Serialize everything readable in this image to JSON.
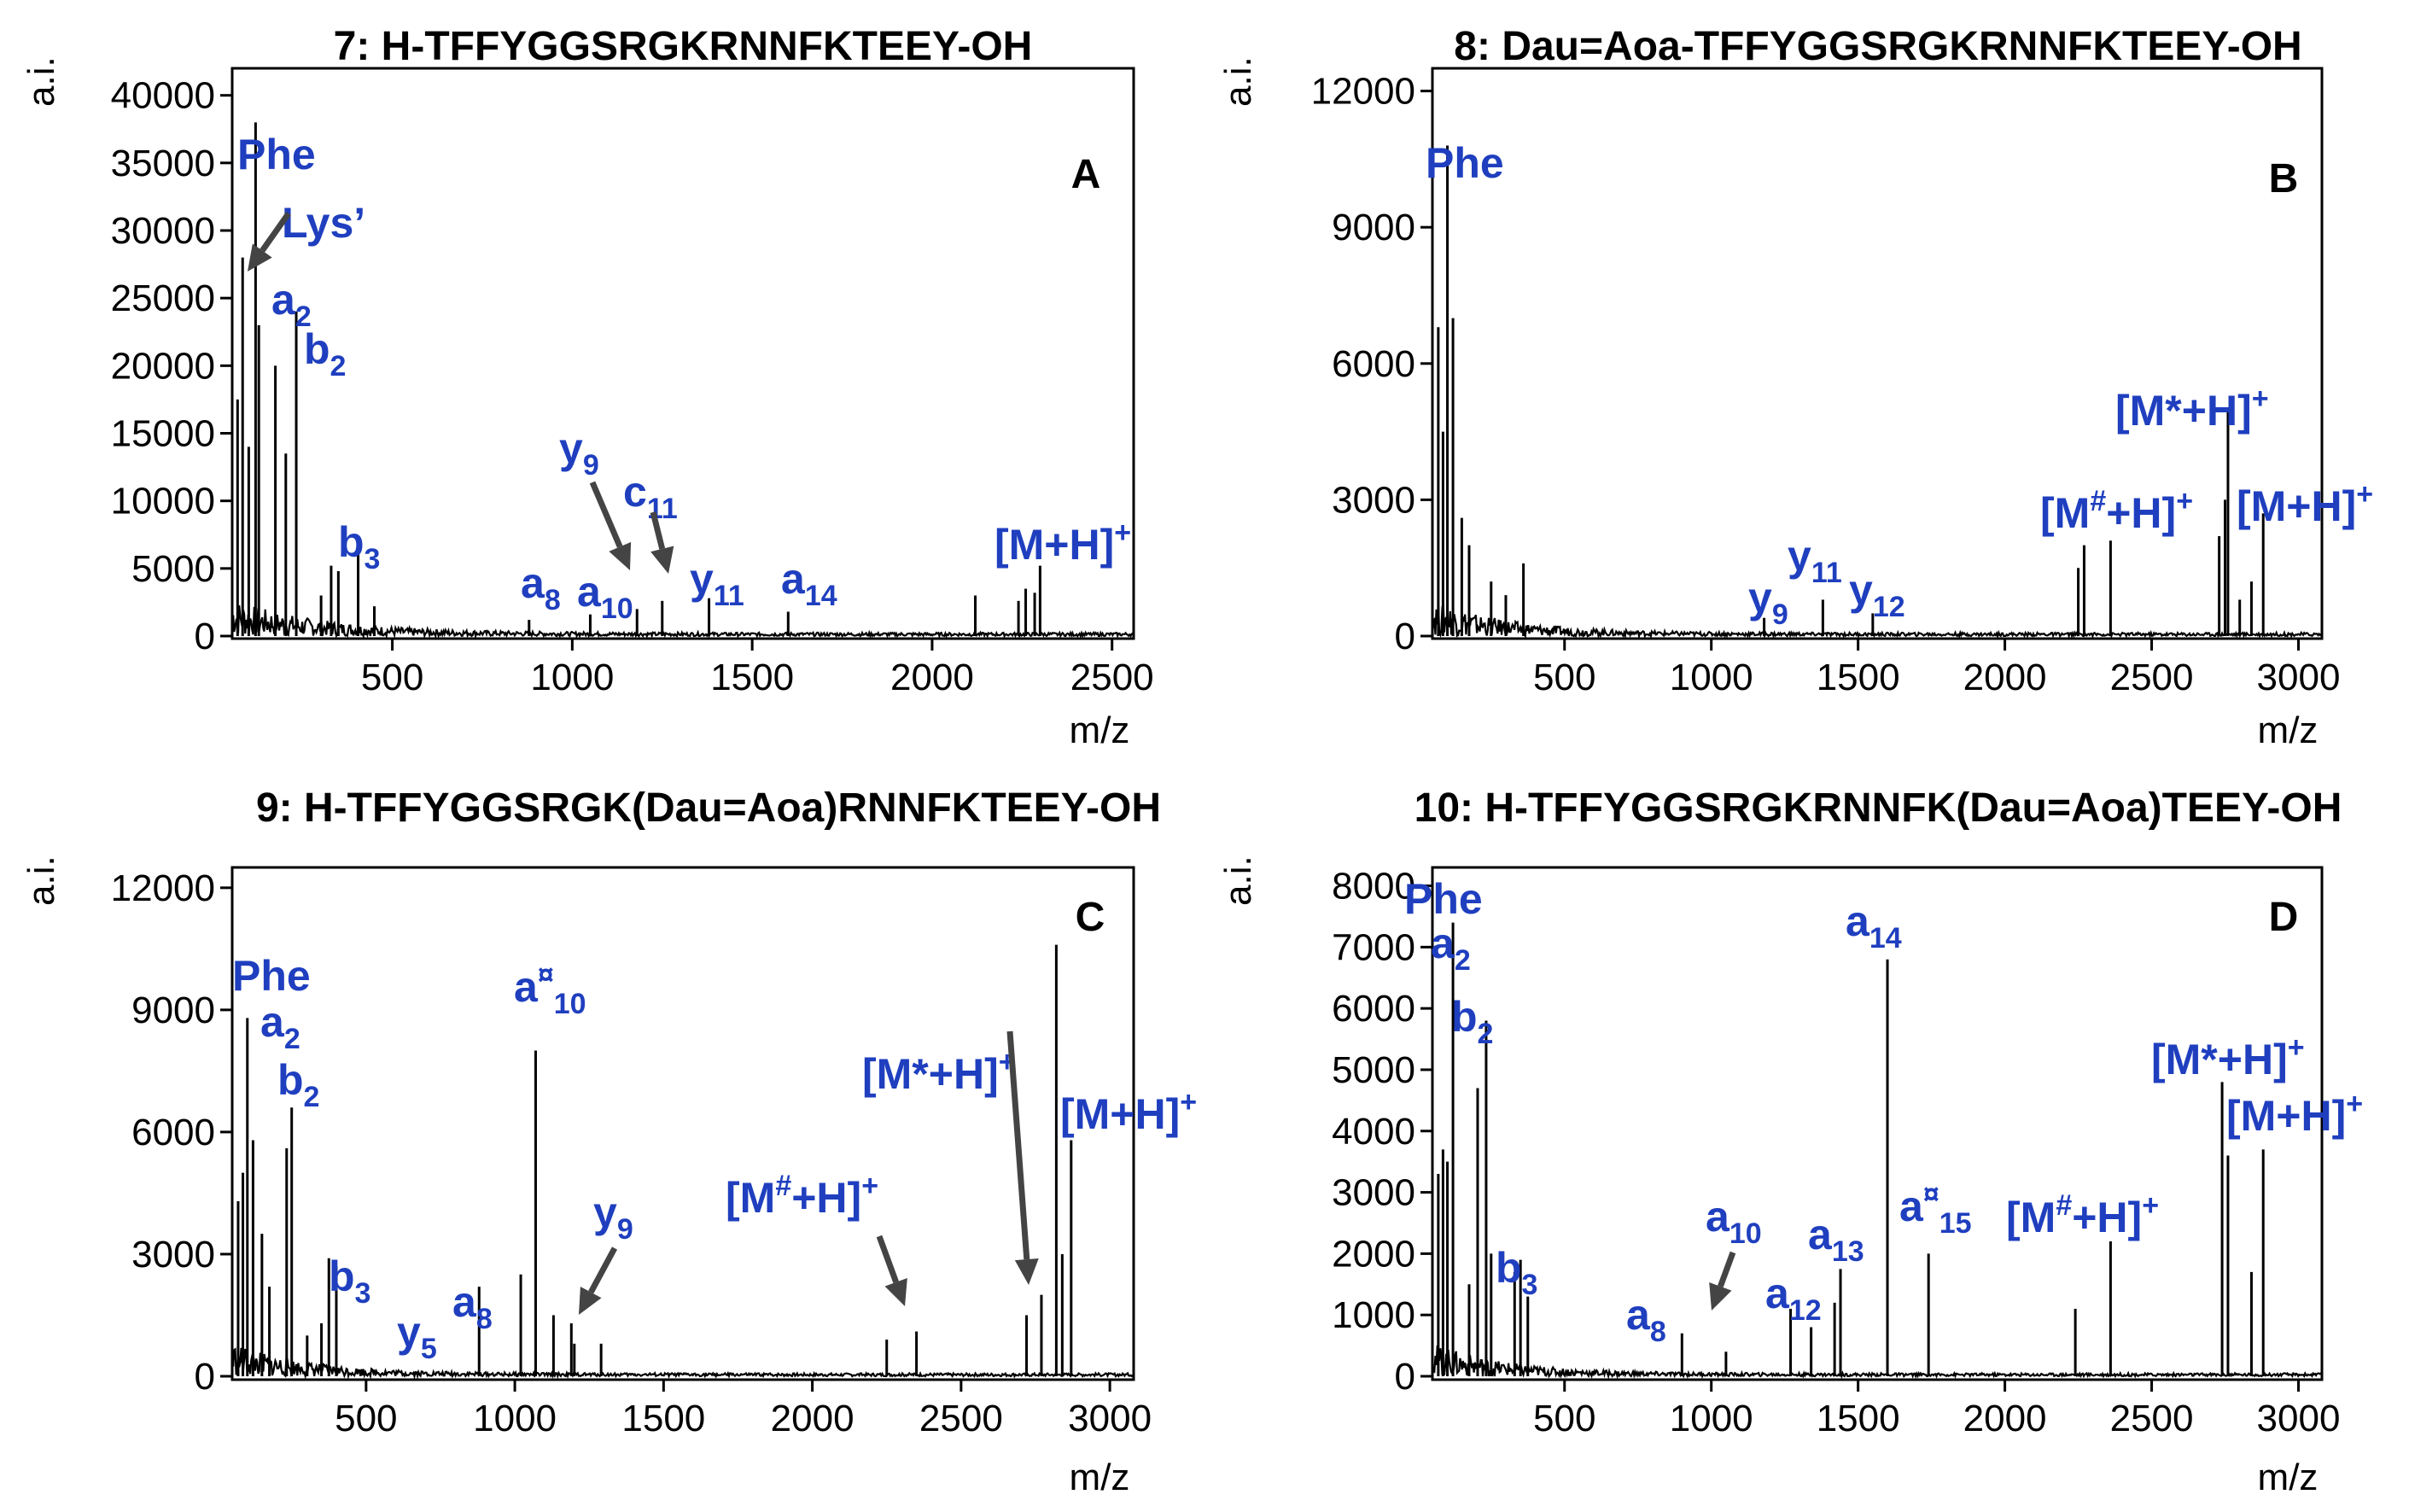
{
  "chart_data": [
    {
      "type": "line",
      "panel": "A",
      "title": "7: H-TFFYGGSRGKRNNFKTEEY-OH",
      "xlabel": "m/z",
      "ylabel": "a.i.",
      "xlim": [
        55,
        2560
      ],
      "ylim": [
        0,
        42000
      ],
      "xticks": [
        500,
        1000,
        1500,
        2000,
        2500
      ],
      "yticks": [
        0,
        5000,
        10000,
        15000,
        20000,
        25000,
        30000,
        35000,
        40000
      ],
      "peaks": [
        [
          70,
          17500
        ],
        [
          84,
          28000
        ],
        [
          101,
          14000
        ],
        [
          120,
          38000
        ],
        [
          129,
          23000
        ],
        [
          175,
          20000
        ],
        [
          204,
          13500
        ],
        [
          233,
          24000
        ],
        [
          302,
          3000
        ],
        [
          330,
          5200
        ],
        [
          350,
          4800
        ],
        [
          405,
          6200
        ],
        [
          450,
          2200
        ],
        [
          880,
          1200
        ],
        [
          1050,
          1600
        ],
        [
          1180,
          2000
        ],
        [
          1250,
          2600
        ],
        [
          1380,
          2800
        ],
        [
          1600,
          1800
        ],
        [
          2120,
          3000
        ],
        [
          2240,
          2600
        ],
        [
          2260,
          3500
        ],
        [
          2285,
          3200
        ],
        [
          2300,
          5200
        ]
      ],
      "annotations": [
        {
          "text": "Phe",
          "sub": "",
          "sup": "",
          "x": 120,
          "y": 38000
        },
        {
          "text": "Lys’",
          "sub": "",
          "sup": "",
          "x": 84,
          "y": 28000
        },
        {
          "text": "a",
          "sub": "2",
          "sup": "",
          "x": 129,
          "y": 23000
        },
        {
          "text": "b",
          "sub": "2",
          "sup": "",
          "x": 233,
          "y": 24000
        },
        {
          "text": "b",
          "sub": "3",
          "sup": "",
          "x": 405,
          "y": 6200
        },
        {
          "text": "a",
          "sub": "8",
          "sup": "",
          "x": 880,
          "y": 1200
        },
        {
          "text": "a",
          "sub": "10",
          "sup": "",
          "x": 1050,
          "y": 1600
        },
        {
          "text": "y",
          "sub": "9",
          "sup": "",
          "x": 1180,
          "y": 2000
        },
        {
          "text": "c",
          "sub": "11",
          "sup": "",
          "x": 1250,
          "y": 2600
        },
        {
          "text": "y",
          "sub": "11",
          "sup": "",
          "x": 1380,
          "y": 2800
        },
        {
          "text": "a",
          "sub": "14",
          "sup": "",
          "x": 1600,
          "y": 1800
        },
        {
          "text": "[M+H]",
          "sub": "",
          "sup": "+",
          "x": 2300,
          "y": 5200
        }
      ]
    },
    {
      "type": "line",
      "panel": "B",
      "title": "8: Dau=Aoa-TFFYGGSRGKRNNFKTEEY-OH",
      "xlabel": "m/z",
      "ylabel": "a.i.",
      "xlim": [
        50,
        3080
      ],
      "ylim": [
        0,
        12500
      ],
      "xticks": [
        500,
        1000,
        1500,
        2000,
        2500,
        3000
      ],
      "yticks": [
        0,
        3000,
        6000,
        9000,
        12000
      ],
      "peaks": [
        [
          70,
          6800
        ],
        [
          86,
          4500
        ],
        [
          101,
          10800
        ],
        [
          120,
          7000
        ],
        [
          150,
          2600
        ],
        [
          175,
          2000
        ],
        [
          250,
          1200
        ],
        [
          300,
          900
        ],
        [
          360,
          1600
        ],
        [
          1180,
          400
        ],
        [
          1380,
          800
        ],
        [
          1550,
          500
        ],
        [
          2250,
          1500
        ],
        [
          2270,
          2000
        ],
        [
          2360,
          2100
        ],
        [
          2730,
          2200
        ],
        [
          2750,
          3000
        ],
        [
          2760,
          5000
        ],
        [
          2800,
          800
        ],
        [
          2840,
          1200
        ],
        [
          2880,
          2700
        ]
      ],
      "annotations": [
        {
          "text": "Phe",
          "sub": "",
          "sup": "",
          "x": 101,
          "y": 10800
        },
        {
          "text": "y",
          "sub": "9",
          "sup": "",
          "x": 1180,
          "y": 400
        },
        {
          "text": "y",
          "sub": "11",
          "sup": "",
          "x": 1380,
          "y": 800
        },
        {
          "text": "y",
          "sub": "12",
          "sup": "",
          "x": 1550,
          "y": 500
        },
        {
          "text": "[M",
          "sub": "",
          "sup": "#",
          "tail": "+H]",
          "tailsup": "+",
          "x": 2360,
          "y": 2100
        },
        {
          "text": "[M*+H]",
          "sub": "",
          "sup": "+",
          "x": 2760,
          "y": 5000
        },
        {
          "text": "[M+H]",
          "sub": "",
          "sup": "+",
          "x": 2880,
          "y": 2700
        }
      ]
    },
    {
      "type": "line",
      "panel": "C",
      "title": "9: H-TFFYGGSRGK(Dau=Aoa)RNNFKTEEY-OH",
      "xlabel": "m/z",
      "ylabel": "a.i.",
      "xlim": [
        50,
        3080
      ],
      "ylim": [
        0,
        12500
      ],
      "xticks": [
        500,
        1000,
        1500,
        2000,
        2500,
        3000
      ],
      "yticks": [
        0,
        3000,
        6000,
        9000,
        12000
      ],
      "peaks": [
        [
          70,
          4300
        ],
        [
          86,
          5000
        ],
        [
          101,
          8800
        ],
        [
          120,
          5800
        ],
        [
          150,
          3500
        ],
        [
          175,
          2200
        ],
        [
          233,
          5600
        ],
        [
          250,
          6600
        ],
        [
          302,
          1000
        ],
        [
          350,
          1300
        ],
        [
          375,
          2900
        ],
        [
          400,
          2700
        ],
        [
          880,
          2200
        ],
        [
          1020,
          2500
        ],
        [
          1070,
          8000
        ],
        [
          1130,
          1500
        ],
        [
          1190,
          1300
        ],
        [
          1200,
          800
        ],
        [
          1290,
          800
        ],
        [
          2250,
          900
        ],
        [
          2350,
          1100
        ],
        [
          2720,
          1500
        ],
        [
          2770,
          2000
        ],
        [
          2820,
          10600
        ],
        [
          2840,
          3000
        ],
        [
          2870,
          5800
        ]
      ],
      "annotations": [
        {
          "text": "Phe",
          "sub": "",
          "sup": "",
          "x": 101,
          "y": 8800
        },
        {
          "text": "a",
          "sub": "2",
          "sup": "",
          "x": 120,
          "y": 5800
        },
        {
          "text": "b",
          "sub": "2",
          "sup": "",
          "x": 250,
          "y": 6600
        },
        {
          "text": "b",
          "sub": "3",
          "sup": "",
          "x": 400,
          "y": 2700
        },
        {
          "text": "y",
          "sub": "5",
          "sup": "",
          "x": 650,
          "y": 300
        },
        {
          "text": "a",
          "sub": "8",
          "sup": "",
          "x": 880,
          "y": 2200
        },
        {
          "text": "a",
          "sub": "10",
          "sup": "¤",
          "x": 1070,
          "y": 8000
        },
        {
          "text": "y",
          "sub": "9",
          "sup": "",
          "x": 1200,
          "y": 800
        },
        {
          "text": "[M",
          "sub": "",
          "sup": "#",
          "tail": "+H]",
          "tailsup": "+",
          "x": 2350,
          "y": 1100
        },
        {
          "text": "[M*+H]",
          "sub": "",
          "sup": "+",
          "x": 2770,
          "y": 2000
        },
        {
          "text": "[M+H]",
          "sub": "",
          "sup": "+",
          "x": 2870,
          "y": 5800
        }
      ]
    },
    {
      "type": "line",
      "panel": "D",
      "title": "10: H-TFFYGGSRGKRNNFK(Dau=Aoa)TEEY-OH",
      "xlabel": "m/z",
      "ylabel": "a.i.",
      "xlim": [
        50,
        3080
      ],
      "ylim": [
        0,
        8300
      ],
      "xticks": [
        500,
        1000,
        1500,
        2000,
        2500,
        3000
      ],
      "yticks": [
        0,
        1000,
        2000,
        3000,
        4000,
        5000,
        6000,
        7000,
        8000
      ],
      "peaks": [
        [
          70,
          3300
        ],
        [
          86,
          3700
        ],
        [
          101,
          3500
        ],
        [
          120,
          7400
        ],
        [
          175,
          1500
        ],
        [
          204,
          4700
        ],
        [
          233,
          5800
        ],
        [
          250,
          2000
        ],
        [
          330,
          1700
        ],
        [
          350,
          1900
        ],
        [
          375,
          1300
        ],
        [
          900,
          700
        ],
        [
          1050,
          400
        ],
        [
          1270,
          1100
        ],
        [
          1340,
          800
        ],
        [
          1420,
          1200
        ],
        [
          1440,
          1750
        ],
        [
          1600,
          6800
        ],
        [
          1740,
          2000
        ],
        [
          2240,
          1100
        ],
        [
          2360,
          2200
        ],
        [
          2740,
          4800
        ],
        [
          2760,
          3600
        ],
        [
          2840,
          1700
        ],
        [
          2880,
          3700
        ]
      ],
      "annotations": [
        {
          "text": "Phe",
          "sub": "",
          "sup": "",
          "x": 120,
          "y": 7400
        },
        {
          "text": "a",
          "sub": "2",
          "sup": "",
          "x": 204,
          "y": 4700
        },
        {
          "text": "b",
          "sub": "2",
          "sup": "",
          "x": 233,
          "y": 5800
        },
        {
          "text": "b",
          "sub": "3",
          "sup": "",
          "x": 350,
          "y": 1900
        },
        {
          "text": "a",
          "sub": "8",
          "sup": "",
          "x": 900,
          "y": 700
        },
        {
          "text": "a",
          "sub": "10",
          "sup": "",
          "x": 1050,
          "y": 400
        },
        {
          "text": "a",
          "sub": "12",
          "sup": "",
          "x": 1420,
          "y": 1200
        },
        {
          "text": "a",
          "sub": "13",
          "sup": "",
          "x": 1440,
          "y": 1750
        },
        {
          "text": "a",
          "sub": "14",
          "sup": "",
          "x": 1600,
          "y": 6800
        },
        {
          "text": "a",
          "sub": "15",
          "sup": "¤",
          "x": 1740,
          "y": 2000
        },
        {
          "text": "[M",
          "sub": "",
          "sup": "#",
          "tail": "+H]",
          "tailsup": "+",
          "x": 2360,
          "y": 2200
        },
        {
          "text": "[M*+H]",
          "sub": "",
          "sup": "+",
          "x": 2740,
          "y": 4800
        },
        {
          "text": "[M+H]",
          "sub": "",
          "sup": "+",
          "x": 2880,
          "y": 3700
        }
      ]
    }
  ]
}
